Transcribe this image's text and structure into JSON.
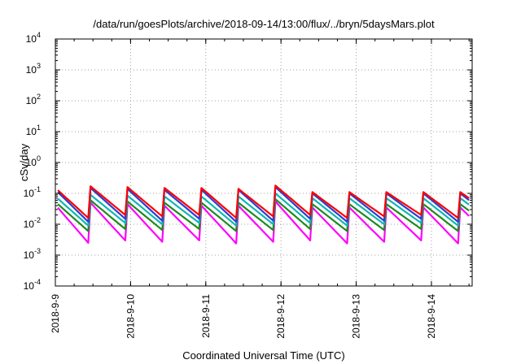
{
  "chart_data": {
    "type": "line",
    "title": "/data/run/goesPlots/archive/2018-09-14/13:00/flux/../bryn/5daysMars.plot",
    "xlabel": "Coordinated Universal Time (UTC)",
    "ylabel": "cSv/day",
    "y_scale": "log",
    "ylim": [
      0.0001,
      10000
    ],
    "xlim": [
      "2018-09-09T00:00",
      "2018-09-14T13:00"
    ],
    "grid": true,
    "legend": "none",
    "y_ticks": [
      {
        "base": "10",
        "exp": "-4"
      },
      {
        "base": "10",
        "exp": "-3"
      },
      {
        "base": "10",
        "exp": "-2"
      },
      {
        "base": "10",
        "exp": "-1"
      },
      {
        "base": "10",
        "exp": "0"
      },
      {
        "base": "10",
        "exp": "1"
      },
      {
        "base": "10",
        "exp": "2"
      },
      {
        "base": "10",
        "exp": "3"
      },
      {
        "base": "10",
        "exp": "4"
      }
    ],
    "x_ticks": [
      "2018-9-9",
      "2018-9-10",
      "2018-9-11",
      "2018-9-12",
      "2018-9-13",
      "2018-9-14"
    ],
    "series": [
      {
        "color": "#ff0000",
        "peak_values": [
          0.17,
          0.17,
          0.16,
          0.15,
          0.15,
          0.14,
          0.18,
          0.11,
          0.11,
          0.11,
          0.11,
          0.11,
          0.11
        ],
        "trough_values": [
          0.016,
          0.02,
          0.018,
          0.02,
          0.016,
          0.018,
          0.02,
          0.016,
          0.018,
          0.02,
          0.016,
          0.018,
          0.017
        ]
      },
      {
        "color": "#2b3fd4",
        "peak_values": [
          0.15,
          0.15,
          0.14,
          0.13,
          0.13,
          0.13,
          0.16,
          0.1,
          0.1,
          0.1,
          0.1,
          0.1,
          0.1
        ],
        "trough_values": [
          0.012,
          0.015,
          0.013,
          0.015,
          0.012,
          0.013,
          0.015,
          0.012,
          0.013,
          0.015,
          0.012,
          0.013,
          0.012
        ]
      },
      {
        "color": "#10b5b5",
        "peak_values": [
          0.09,
          0.09,
          0.085,
          0.08,
          0.08,
          0.08,
          0.1,
          0.07,
          0.07,
          0.07,
          0.07,
          0.07,
          0.07
        ],
        "trough_values": [
          0.009,
          0.011,
          0.01,
          0.011,
          0.009,
          0.01,
          0.011,
          0.009,
          0.01,
          0.011,
          0.009,
          0.01,
          0.009
        ]
      },
      {
        "color": "#1e8a1e",
        "peak_values": [
          0.06,
          0.06,
          0.055,
          0.05,
          0.05,
          0.05,
          0.065,
          0.045,
          0.045,
          0.045,
          0.045,
          0.045,
          0.045
        ],
        "trough_values": [
          0.006,
          0.007,
          0.0065,
          0.007,
          0.006,
          0.0065,
          0.007,
          0.006,
          0.0065,
          0.007,
          0.006,
          0.0065,
          0.006
        ]
      },
      {
        "color": "#ff00ff",
        "peak_values": [
          0.05,
          0.05,
          0.045,
          0.04,
          0.04,
          0.04,
          0.055,
          0.035,
          0.035,
          0.035,
          0.035,
          0.035,
          0.035
        ],
        "trough_values": [
          0.0025,
          0.003,
          0.0027,
          0.003,
          0.0024,
          0.0027,
          0.003,
          0.0024,
          0.0027,
          0.003,
          0.0024,
          0.0027,
          0.0024
        ]
      }
    ]
  }
}
